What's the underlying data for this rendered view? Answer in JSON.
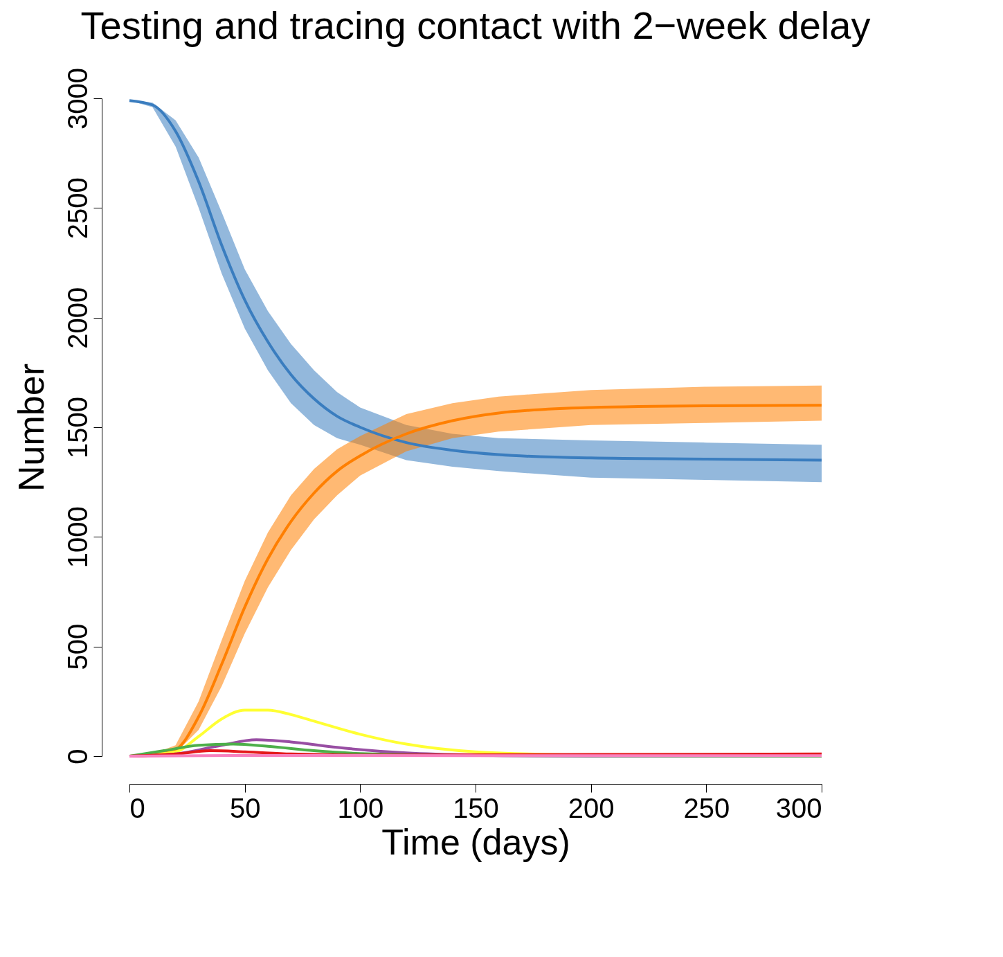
{
  "chart_data": {
    "type": "line",
    "title": "Testing and tracing contact with 2−week delay",
    "xlabel": "Time (days)",
    "ylabel": "Number",
    "xlim": [
      0,
      300
    ],
    "ylim": [
      0,
      3000
    ],
    "xticks": [
      0,
      50,
      100,
      150,
      200,
      250,
      300
    ],
    "yticks": [
      0,
      500,
      1000,
      1500,
      2000,
      2500,
      3000
    ],
    "grid": false,
    "marker": "none",
    "line_style": "solid",
    "series": [
      {
        "color": "#3a7dbf",
        "x": [
          0,
          10,
          20,
          30,
          40,
          50,
          60,
          70,
          80,
          90,
          100,
          120,
          140,
          160,
          200,
          250,
          300
        ],
        "values": [
          2990,
          2970,
          2850,
          2620,
          2330,
          2080,
          1890,
          1740,
          1630,
          1550,
          1500,
          1430,
          1395,
          1375,
          1360,
          1355,
          1350
        ],
        "lower": [
          2990,
          2960,
          2780,
          2500,
          2200,
          1950,
          1760,
          1610,
          1510,
          1450,
          1420,
          1350,
          1320,
          1300,
          1270,
          1260,
          1250
        ],
        "upper": [
          2990,
          2980,
          2900,
          2730,
          2480,
          2220,
          2030,
          1880,
          1760,
          1660,
          1590,
          1510,
          1470,
          1450,
          1440,
          1430,
          1420
        ]
      },
      {
        "color": "#ff7f00",
        "x": [
          0,
          10,
          20,
          30,
          40,
          50,
          60,
          70,
          80,
          90,
          100,
          120,
          140,
          160,
          200,
          250,
          300
        ],
        "values": [
          0,
          5,
          30,
          180,
          420,
          680,
          900,
          1070,
          1200,
          1300,
          1370,
          1470,
          1530,
          1565,
          1590,
          1598,
          1600
        ],
        "lower": [
          0,
          2,
          15,
          120,
          320,
          560,
          770,
          940,
          1080,
          1190,
          1280,
          1390,
          1450,
          1480,
          1510,
          1520,
          1530
        ],
        "upper": [
          0,
          10,
          50,
          250,
          530,
          800,
          1020,
          1190,
          1310,
          1400,
          1460,
          1560,
          1610,
          1640,
          1670,
          1685,
          1690
        ]
      },
      {
        "color": "#ffff33",
        "x": [
          0,
          20,
          30,
          40,
          50,
          60,
          70,
          80,
          100,
          120,
          150,
          200,
          300
        ],
        "values": [
          0,
          20,
          90,
          170,
          210,
          210,
          190,
          160,
          100,
          55,
          20,
          5,
          0
        ]
      },
      {
        "color": "#984ea3",
        "x": [
          0,
          20,
          40,
          55,
          70,
          90,
          120,
          150,
          200,
          300
        ],
        "values": [
          0,
          10,
          50,
          75,
          65,
          40,
          15,
          5,
          0,
          0
        ]
      },
      {
        "color": "#4daf4a",
        "x": [
          0,
          15,
          30,
          45,
          60,
          80,
          100,
          150,
          300
        ],
        "values": [
          0,
          25,
          50,
          55,
          45,
          25,
          12,
          3,
          0
        ]
      },
      {
        "color": "#e41a1c",
        "x": [
          0,
          20,
          35,
          50,
          70,
          100,
          200,
          300
        ],
        "values": [
          0,
          10,
          25,
          20,
          10,
          5,
          8,
          10
        ]
      },
      {
        "color": "#f781bf",
        "x": [
          0,
          50,
          100,
          200,
          300
        ],
        "values": [
          0,
          3,
          3,
          2,
          2
        ]
      }
    ]
  }
}
